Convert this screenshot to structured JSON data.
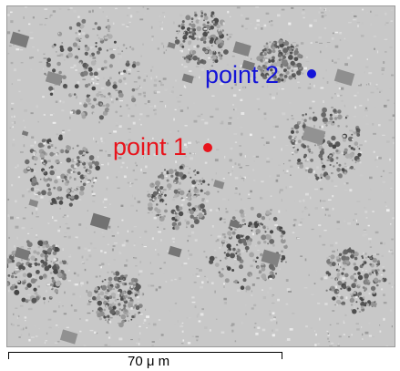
{
  "image": {
    "subject": "sem-backscatter-micrograph",
    "background_color": "#c8c8c8"
  },
  "points": [
    {
      "label": "point 1",
      "color": "#e8141c"
    },
    {
      "label": "point 2",
      "color": "#1414d8"
    }
  ],
  "scale": {
    "label": "70 μ m"
  }
}
